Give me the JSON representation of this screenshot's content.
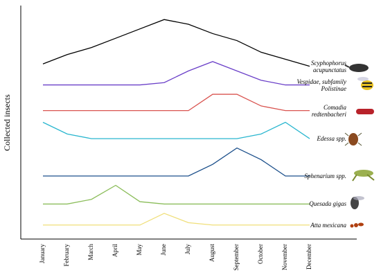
{
  "chart_data": {
    "type": "line",
    "ylabel": "Collected insects",
    "categories": [
      "January",
      "February",
      "March",
      "April",
      "May",
      "June",
      "July",
      "August",
      "September",
      "October",
      "November",
      "December"
    ],
    "ylim": [
      0,
      100
    ],
    "series": [
      {
        "name": "Scyphophorus acupunctatus",
        "color": "#000000",
        "values": [
          75,
          79,
          82,
          86,
          90,
          94,
          92,
          88,
          85,
          80,
          77,
          74
        ]
      },
      {
        "name": "Vespidae, subfamily Polistinae",
        "color": "#6a3fc8",
        "values": [
          66,
          66,
          66,
          66,
          66,
          67,
          72,
          76,
          72,
          68,
          66,
          66
        ]
      },
      {
        "name": "Comadia redtenbacheri",
        "color": "#d9534f",
        "values": [
          55,
          55,
          55,
          55,
          55,
          55,
          55,
          62,
          62,
          57,
          55,
          55
        ]
      },
      {
        "name": "Edessa spp.",
        "color": "#29b6cf",
        "values": [
          50,
          45,
          43,
          43,
          43,
          43,
          43,
          43,
          43,
          45,
          50,
          43
        ]
      },
      {
        "name": "Sphenarium spp.",
        "color": "#1a4e8a",
        "values": [
          27,
          27,
          27,
          27,
          27,
          27,
          27,
          32,
          39,
          34,
          27,
          27
        ]
      },
      {
        "name": "Quesada gigas",
        "color": "#8bbd5a",
        "values": [
          15,
          15,
          17,
          23,
          16,
          15,
          15,
          15,
          15,
          15,
          15,
          15
        ]
      },
      {
        "name": "Atta mexicana",
        "color": "#f0df7a",
        "values": [
          6,
          6,
          6,
          6,
          6,
          11,
          7,
          6,
          6,
          6,
          6,
          6
        ]
      }
    ]
  }
}
